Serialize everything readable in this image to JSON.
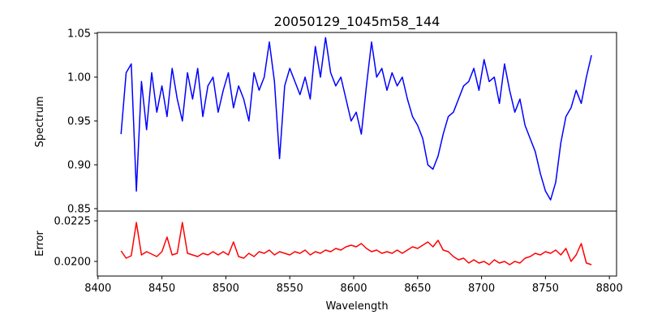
{
  "chart_data": {
    "type": "line",
    "title": "20050129_1045m58_144",
    "xlabel": "Wavelength",
    "xlim": [
      8399.5,
      8805.6
    ],
    "xticks": [
      8400,
      8450,
      8500,
      8550,
      8600,
      8650,
      8700,
      8750,
      8800
    ],
    "x": [
      8418,
      8422,
      8426,
      8430,
      8434,
      8438,
      8442,
      8446,
      8450,
      8454,
      8458,
      8462,
      8466,
      8470,
      8474,
      8478,
      8482,
      8486,
      8490,
      8494,
      8498,
      8502,
      8506,
      8510,
      8514,
      8518,
      8522,
      8526,
      8530,
      8534,
      8538,
      8542,
      8546,
      8550,
      8554,
      8558,
      8562,
      8566,
      8570,
      8574,
      8578,
      8582,
      8586,
      8590,
      8594,
      8598,
      8602,
      8606,
      8610,
      8614,
      8618,
      8622,
      8626,
      8630,
      8634,
      8638,
      8642,
      8646,
      8650,
      8654,
      8658,
      8662,
      8666,
      8670,
      8674,
      8678,
      8682,
      8686,
      8690,
      8694,
      8698,
      8702,
      8706,
      8710,
      8714,
      8718,
      8722,
      8726,
      8730,
      8734,
      8738,
      8742,
      8746,
      8750,
      8754,
      8758,
      8762,
      8766,
      8770,
      8774,
      8778,
      8782,
      8786
    ],
    "panels": [
      {
        "name": "spectrum",
        "ylabel": "Spectrum",
        "color": "#0000ff",
        "ylim": [
          0.8472,
          1.0509
        ],
        "yticks": [
          "0.85",
          "0.90",
          "0.95",
          "1.00",
          "1.05"
        ],
        "values": [
          0.935,
          1.005,
          1.015,
          0.87,
          0.995,
          0.94,
          1.005,
          0.96,
          0.99,
          0.955,
          1.01,
          0.975,
          0.95,
          1.005,
          0.975,
          1.01,
          0.955,
          0.99,
          1.0,
          0.96,
          0.985,
          1.005,
          0.965,
          0.99,
          0.975,
          0.95,
          1.005,
          0.985,
          1.0,
          1.04,
          0.995,
          0.907,
          0.99,
          1.01,
          0.995,
          0.98,
          1.0,
          0.975,
          1.035,
          1.0,
          1.045,
          1.005,
          0.99,
          1.0,
          0.975,
          0.95,
          0.96,
          0.935,
          0.99,
          1.04,
          1.0,
          1.01,
          0.985,
          1.005,
          0.99,
          1.0,
          0.975,
          0.955,
          0.945,
          0.93,
          0.9,
          0.895,
          0.91,
          0.935,
          0.955,
          0.96,
          0.975,
          0.99,
          0.995,
          1.01,
          0.985,
          1.02,
          0.995,
          1.0,
          0.97,
          1.015,
          0.985,
          0.96,
          0.975,
          0.945,
          0.93,
          0.915,
          0.89,
          0.87,
          0.86,
          0.88,
          0.925,
          0.955,
          0.965,
          0.985,
          0.97,
          1.0,
          1.025
        ]
      },
      {
        "name": "error",
        "ylabel": "Error",
        "color": "#ff0000",
        "ylim": [
          0.0191,
          0.0231
        ],
        "yticks": [
          "0.0200",
          "0.0225"
        ],
        "values": [
          0.02065,
          0.0202,
          0.02035,
          0.0224,
          0.0204,
          0.0206,
          0.02045,
          0.0203,
          0.0206,
          0.0215,
          0.0204,
          0.0205,
          0.0224,
          0.0205,
          0.0204,
          0.0203,
          0.0205,
          0.0204,
          0.0206,
          0.0204,
          0.0206,
          0.0204,
          0.0212,
          0.0203,
          0.0202,
          0.0205,
          0.0203,
          0.0206,
          0.0205,
          0.0207,
          0.0204,
          0.0206,
          0.0205,
          0.0204,
          0.0206,
          0.0205,
          0.0207,
          0.0204,
          0.0206,
          0.0205,
          0.0207,
          0.0206,
          0.0208,
          0.0207,
          0.0209,
          0.021,
          0.0209,
          0.0211,
          0.0208,
          0.0206,
          0.0207,
          0.0205,
          0.0206,
          0.0205,
          0.0207,
          0.0205,
          0.0207,
          0.0209,
          0.0208,
          0.021,
          0.0212,
          0.0209,
          0.0213,
          0.0207,
          0.0206,
          0.0203,
          0.0201,
          0.0202,
          0.0199,
          0.0201,
          0.0199,
          0.02,
          0.0198,
          0.0201,
          0.0199,
          0.02,
          0.0198,
          0.02,
          0.0199,
          0.0202,
          0.0203,
          0.0205,
          0.0204,
          0.0206,
          0.0205,
          0.0207,
          0.0204,
          0.0208,
          0.02,
          0.0204,
          0.0211,
          0.0199,
          0.0198
        ]
      }
    ]
  }
}
